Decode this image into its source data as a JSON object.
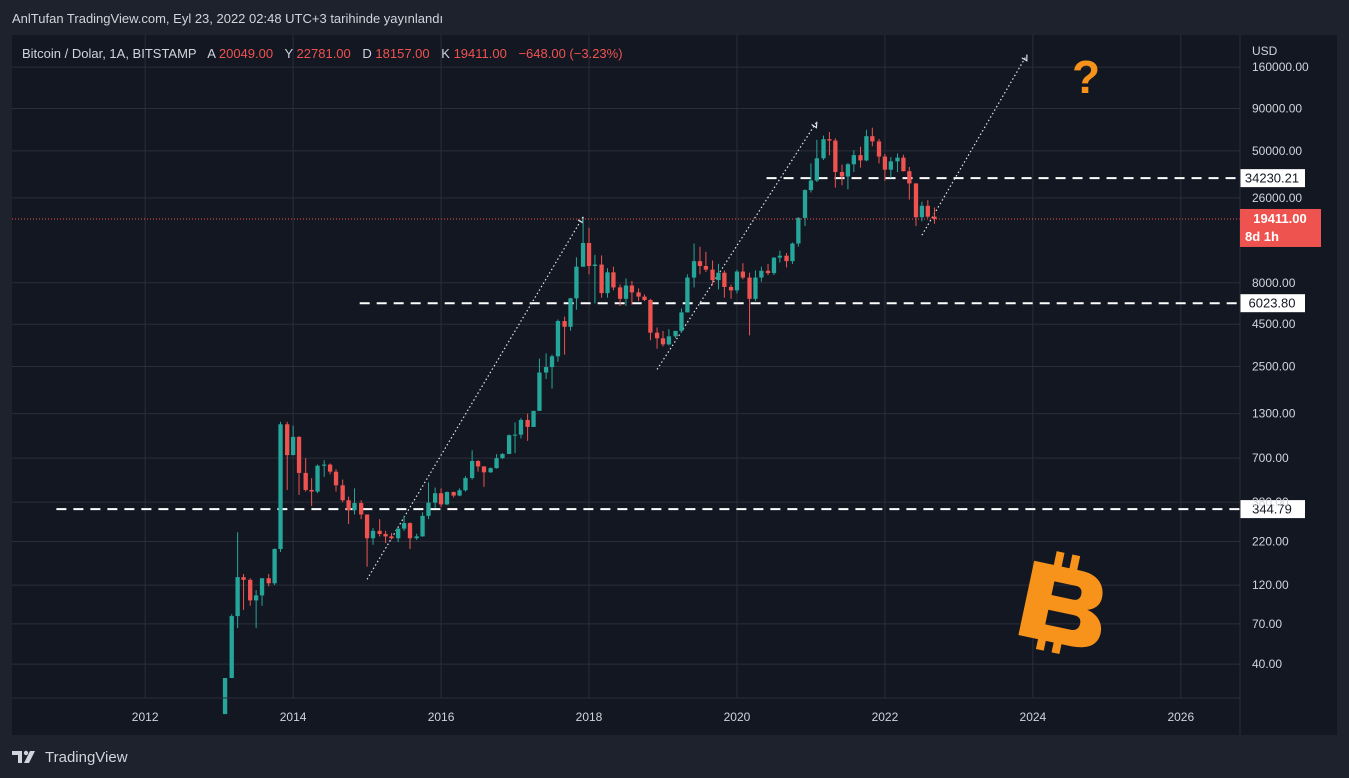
{
  "header": {
    "published_line": "AnlTufan TradingView.com, Eyl 23, 2022 02:48 UTC+3 tarihinde yayınlandı"
  },
  "legend": {
    "symbol": "Bitcoin / Dolar, 1A, BITSTAMP",
    "open_prefix": "A",
    "open": "20049.00",
    "high_prefix": "Y",
    "high": "22781.00",
    "low_prefix": "D",
    "low": "18157.00",
    "close_prefix": "K",
    "close": "19411.00",
    "change": "−648.00 (−3.23%)"
  },
  "footer": {
    "brand": "TradingView"
  },
  "colors": {
    "up": "#26a69a",
    "down": "#ef5350",
    "text": "#d1d4dc",
    "grid": "#2a2e39",
    "panel": "#131722",
    "frame": "#1e222d",
    "orange": "#f7931a"
  },
  "annotations": {
    "question": "?",
    "bitcoin_symbol": "bitcoin-logo-icon"
  },
  "chart_data": {
    "type": "candlestick",
    "scale": "log",
    "ylabel": "USD",
    "ylim": [
      25,
      250000
    ],
    "xlim": [
      2010.2,
      2026.8
    ],
    "x_ticks": [
      2012,
      2014,
      2016,
      2018,
      2020,
      2022,
      2024,
      2026
    ],
    "y_ticks": [
      "40.00",
      "70.00",
      "120.00",
      "220.00",
      "380.00",
      "700.00",
      "1300.00",
      "2500.00",
      "4500.00",
      "8000.00",
      "26000.00",
      "50000.00",
      "90000.00",
      "160000.00"
    ],
    "price_label": {
      "value": "19411.00",
      "countdown": "8d 1h"
    },
    "horizontal_levels": [
      {
        "label": "34230.21",
        "value": 34230.21,
        "from_year": 2020.4
      },
      {
        "label": "6023.80",
        "value": 6023.8,
        "from_year": 2014.9
      },
      {
        "label": "344.79",
        "value": 344.79,
        "from_year": 2010.8
      }
    ],
    "path_lines": [
      [
        [
          2015.0,
          130
        ],
        [
          2017.92,
          20000
        ]
      ],
      [
        [
          2018.92,
          2400
        ],
        [
          2021.08,
          75000
        ]
      ],
      [
        [
          2022.5,
          15500
        ],
        [
          2023.92,
          190000
        ]
      ]
    ],
    "candles": [
      [
        2013.08,
        20,
        33,
        20,
        33
      ],
      [
        2013.17,
        33,
        80,
        33,
        78
      ],
      [
        2013.25,
        78,
        250,
        66,
        134
      ],
      [
        2013.33,
        134,
        140,
        85,
        129
      ],
      [
        2013.42,
        129,
        132,
        90,
        97
      ],
      [
        2013.5,
        97,
        112,
        66,
        104
      ],
      [
        2013.58,
        104,
        130,
        90,
        132
      ],
      [
        2013.67,
        132,
        140,
        118,
        123
      ],
      [
        2013.75,
        123,
        200,
        120,
        198
      ],
      [
        2013.83,
        198,
        1160,
        190,
        1120
      ],
      [
        2013.92,
        1120,
        1160,
        450,
        730
      ],
      [
        2014.0,
        730,
        1100,
        730,
        940
      ],
      [
        2014.08,
        940,
        950,
        420,
        570
      ],
      [
        2014.17,
        570,
        700,
        440,
        450
      ],
      [
        2014.25,
        450,
        530,
        360,
        440
      ],
      [
        2014.33,
        440,
        640,
        430,
        630
      ],
      [
        2014.42,
        630,
        680,
        540,
        640
      ],
      [
        2014.5,
        640,
        650,
        560,
        580
      ],
      [
        2014.58,
        580,
        600,
        440,
        480
      ],
      [
        2014.67,
        480,
        520,
        380,
        390
      ],
      [
        2014.75,
        390,
        410,
        280,
        340
      ],
      [
        2014.83,
        340,
        460,
        320,
        375
      ],
      [
        2014.92,
        375,
        390,
        300,
        320
      ],
      [
        2015.0,
        320,
        320,
        155,
        230
      ],
      [
        2015.08,
        230,
        265,
        210,
        255
      ],
      [
        2015.17,
        255,
        300,
        236,
        244
      ],
      [
        2015.25,
        244,
        255,
        215,
        236
      ],
      [
        2015.33,
        236,
        247,
        226,
        230
      ],
      [
        2015.42,
        230,
        265,
        218,
        263
      ],
      [
        2015.5,
        263,
        315,
        255,
        284
      ],
      [
        2015.58,
        284,
        287,
        198,
        230
      ],
      [
        2015.67,
        230,
        245,
        225,
        236
      ],
      [
        2015.75,
        236,
        330,
        235,
        314
      ],
      [
        2015.83,
        314,
        500,
        300,
        377
      ],
      [
        2015.92,
        377,
        465,
        350,
        430
      ],
      [
        2016.0,
        430,
        460,
        355,
        368
      ],
      [
        2016.08,
        368,
        440,
        365,
        437
      ],
      [
        2016.17,
        437,
        440,
        405,
        416
      ],
      [
        2016.25,
        416,
        460,
        412,
        448
      ],
      [
        2016.33,
        448,
        545,
        440,
        531
      ],
      [
        2016.42,
        531,
        780,
        520,
        673
      ],
      [
        2016.5,
        673,
        680,
        580,
        624
      ],
      [
        2016.58,
        624,
        625,
        470,
        575
      ],
      [
        2016.67,
        575,
        615,
        570,
        609
      ],
      [
        2016.75,
        609,
        740,
        605,
        700
      ],
      [
        2016.83,
        700,
        750,
        690,
        742
      ],
      [
        2016.92,
        742,
        970,
        740,
        963
      ],
      [
        2017.0,
        963,
        1150,
        750,
        970
      ],
      [
        2017.08,
        970,
        1220,
        920,
        1190
      ],
      [
        2017.17,
        1190,
        1300,
        890,
        1080
      ],
      [
        2017.25,
        1080,
        1350,
        1080,
        1350
      ],
      [
        2017.33,
        1350,
        2790,
        1350,
        2300
      ],
      [
        2017.42,
        2300,
        3000,
        2100,
        2480
      ],
      [
        2017.5,
        2480,
        2950,
        1840,
        2880
      ],
      [
        2017.58,
        2880,
        4800,
        2670,
        4700
      ],
      [
        2017.67,
        4700,
        5000,
        2950,
        4340
      ],
      [
        2017.75,
        4340,
        6480,
        4110,
        6450
      ],
      [
        2017.83,
        6450,
        11400,
        5500,
        10000
      ],
      [
        2017.92,
        10000,
        19700,
        10000,
        13900
      ],
      [
        2018.0,
        13900,
        17200,
        9000,
        10100
      ],
      [
        2018.08,
        10100,
        11800,
        6000,
        10300
      ],
      [
        2018.17,
        10300,
        11700,
        6500,
        6930
      ],
      [
        2018.25,
        6930,
        9800,
        6500,
        9250
      ],
      [
        2018.33,
        9250,
        10000,
        7200,
        7500
      ],
      [
        2018.42,
        7500,
        7800,
        5800,
        6400
      ],
      [
        2018.5,
        6400,
        8500,
        5800,
        7700
      ],
      [
        2018.58,
        7700,
        8200,
        5900,
        7000
      ],
      [
        2018.67,
        7000,
        7400,
        6200,
        6600
      ],
      [
        2018.75,
        6600,
        6800,
        6200,
        6300
      ],
      [
        2018.83,
        6300,
        6400,
        3600,
        4000
      ],
      [
        2018.92,
        4000,
        4300,
        3200,
        3700
      ],
      [
        2019.0,
        3700,
        4100,
        3300,
        3400
      ],
      [
        2019.08,
        3400,
        4200,
        3350,
        3800
      ],
      [
        2019.17,
        3800,
        4100,
        3700,
        4100
      ],
      [
        2019.25,
        4100,
        5600,
        4000,
        5300
      ],
      [
        2019.33,
        5300,
        9000,
        5300,
        8600
      ],
      [
        2019.42,
        8600,
        13800,
        7500,
        10800
      ],
      [
        2019.5,
        10800,
        13200,
        9000,
        10100
      ],
      [
        2019.58,
        10100,
        12300,
        9300,
        9600
      ],
      [
        2019.67,
        9600,
        10900,
        7700,
        8300
      ],
      [
        2019.75,
        8300,
        10400,
        7300,
        9200
      ],
      [
        2019.83,
        9200,
        9500,
        6500,
        7550
      ],
      [
        2019.92,
        7550,
        7800,
        6400,
        7200
      ],
      [
        2020.0,
        7200,
        9600,
        6900,
        9350
      ],
      [
        2020.08,
        9350,
        10500,
        8400,
        8600
      ],
      [
        2020.17,
        8600,
        9200,
        3850,
        6400
      ],
      [
        2020.25,
        6400,
        9500,
        6200,
        8600
      ],
      [
        2020.33,
        8600,
        10000,
        8100,
        9450
      ],
      [
        2020.42,
        9450,
        10400,
        8900,
        9150
      ],
      [
        2020.5,
        9150,
        11400,
        8900,
        11350
      ],
      [
        2020.58,
        11350,
        12500,
        10600,
        11650
      ],
      [
        2020.67,
        11650,
        12100,
        9900,
        10800
      ],
      [
        2020.75,
        10800,
        14000,
        10400,
        13800
      ],
      [
        2020.83,
        13800,
        19900,
        13200,
        19700
      ],
      [
        2020.92,
        19700,
        29300,
        17600,
        29000
      ],
      [
        2021.0,
        29000,
        42000,
        28000,
        33100
      ],
      [
        2021.08,
        33100,
        58300,
        32400,
        45100
      ],
      [
        2021.17,
        45100,
        61800,
        44000,
        58800
      ],
      [
        2021.25,
        58800,
        64900,
        47000,
        57700
      ],
      [
        2021.33,
        57700,
        59500,
        30000,
        37300
      ],
      [
        2021.42,
        37300,
        41300,
        31000,
        35000
      ],
      [
        2021.5,
        35000,
        42300,
        29300,
        41500
      ],
      [
        2021.58,
        41500,
        50500,
        37300,
        47100
      ],
      [
        2021.67,
        47100,
        52900,
        39600,
        43800
      ],
      [
        2021.75,
        43800,
        67000,
        43300,
        61300
      ],
      [
        2021.83,
        61300,
        69000,
        53300,
        57000
      ],
      [
        2021.92,
        57000,
        59000,
        42000,
        46200
      ],
      [
        2022.0,
        46200,
        47900,
        33000,
        38500
      ],
      [
        2022.08,
        38500,
        45800,
        34300,
        43200
      ],
      [
        2022.17,
        43200,
        48200,
        37200,
        45500
      ],
      [
        2022.25,
        45500,
        47400,
        37600,
        37700
      ],
      [
        2022.33,
        37700,
        40000,
        25400,
        31800
      ],
      [
        2022.42,
        31800,
        31900,
        17600,
        19900
      ],
      [
        2022.5,
        19900,
        24700,
        18800,
        23300
      ],
      [
        2022.58,
        23300,
        25200,
        19600,
        20049
      ],
      [
        2022.67,
        20049,
        22781,
        18157,
        19411
      ]
    ]
  }
}
